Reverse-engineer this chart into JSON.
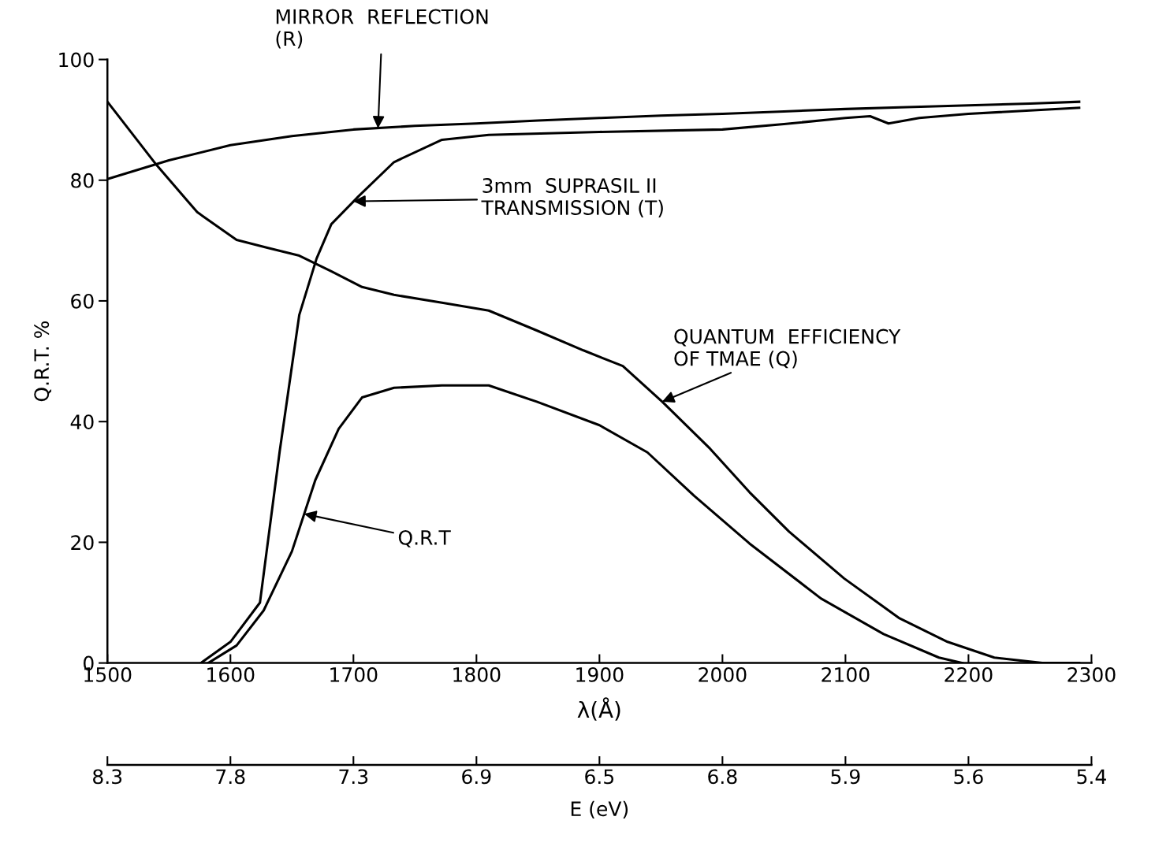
{
  "chart_data": [
    {
      "type": "line",
      "ylabel": "Q.R.T. %",
      "xlabel": "λ(Å)",
      "xlim": [
        1500,
        2300
      ],
      "ylim": [
        0,
        100
      ],
      "xticks": [
        1500,
        1600,
        1700,
        1800,
        1900,
        2000,
        2100,
        2200,
        2300
      ],
      "yticks": [
        0,
        20,
        40,
        60,
        80,
        100
      ],
      "grid": false,
      "legend": false,
      "marker": "none",
      "line_style": "solid",
      "series": [
        {
          "color": "#000000",
          "x": [
            1500,
            1550,
            1600,
            1650,
            1700,
            1750,
            1800,
            1850,
            1900,
            1950,
            2000,
            2050,
            2100,
            2150,
            2200,
            2250,
            2290
          ],
          "values": [
            80.2,
            83.3,
            85.8,
            87.3,
            88.4,
            89.0,
            89.4,
            89.9,
            90.3,
            90.7,
            91.0,
            91.4,
            91.8,
            92.1,
            92.4,
            92.7,
            93.0
          ]
        },
        {
          "color": "#000000",
          "x": [
            1576,
            1600,
            1624,
            1640,
            1656,
            1670,
            1682,
            1704,
            1733,
            1772,
            1810,
            1900,
            2000,
            2050,
            2100,
            2120,
            2135,
            2160,
            2200,
            2290
          ],
          "values": [
            0,
            3.5,
            10,
            35,
            57.7,
            67,
            72.7,
            77.3,
            83,
            86.7,
            87.5,
            88,
            88.4,
            89.3,
            90.3,
            90.6,
            89.4,
            90.3,
            91,
            92
          ]
        },
        {
          "color": "#000000",
          "x": [
            1500,
            1540,
            1573,
            1605,
            1630,
            1656,
            1682,
            1707,
            1733,
            1772,
            1810,
            1849,
            1887,
            1919,
            1951,
            1990,
            2022,
            2054,
            2099,
            2144,
            2183,
            2221,
            2260,
            2290
          ],
          "values": [
            93,
            82.5,
            74.7,
            70.1,
            68.8,
            67.5,
            64.9,
            62.3,
            61,
            59.7,
            58.4,
            55.1,
            51.8,
            49.2,
            43.3,
            35.5,
            28.3,
            21.8,
            14,
            7.4,
            3.5,
            0.9,
            0,
            0
          ]
        },
        {
          "color": "#000000",
          "x": [
            1582,
            1605,
            1627,
            1650,
            1669,
            1688,
            1707,
            1733,
            1772,
            1810,
            1849,
            1900,
            1939,
            1977,
            2022,
            2080,
            2131,
            2176,
            2195
          ],
          "values": [
            0,
            2.9,
            8.7,
            18.5,
            30.3,
            38.8,
            44,
            45.6,
            46,
            46,
            43.3,
            39.4,
            34.9,
            27.7,
            19.8,
            10.7,
            4.8,
            0.9,
            0
          ]
        }
      ],
      "annotations": [
        {
          "text": "MIRROR  REFLECTION\n(R)",
          "x": 1720,
          "y": 88.6
        },
        {
          "text": "3mm  SUPRASIL II\nTRANSMISSION (T)",
          "x": 1700,
          "y": 76.5
        },
        {
          "text": "QUANTUM  EFFICIENCY\nOF TMAE (Q)",
          "x": 1951,
          "y": 43.3
        },
        {
          "text": "Q.R.T",
          "x": 1660,
          "y": 24.7
        }
      ]
    },
    {
      "type": "other",
      "xlabel": "E (eV)",
      "categories": [
        "8.3",
        "7.8",
        "7.3",
        "6.9",
        "6.5",
        "6.8",
        "5.9",
        "5.6",
        "5.4"
      ]
    }
  ]
}
